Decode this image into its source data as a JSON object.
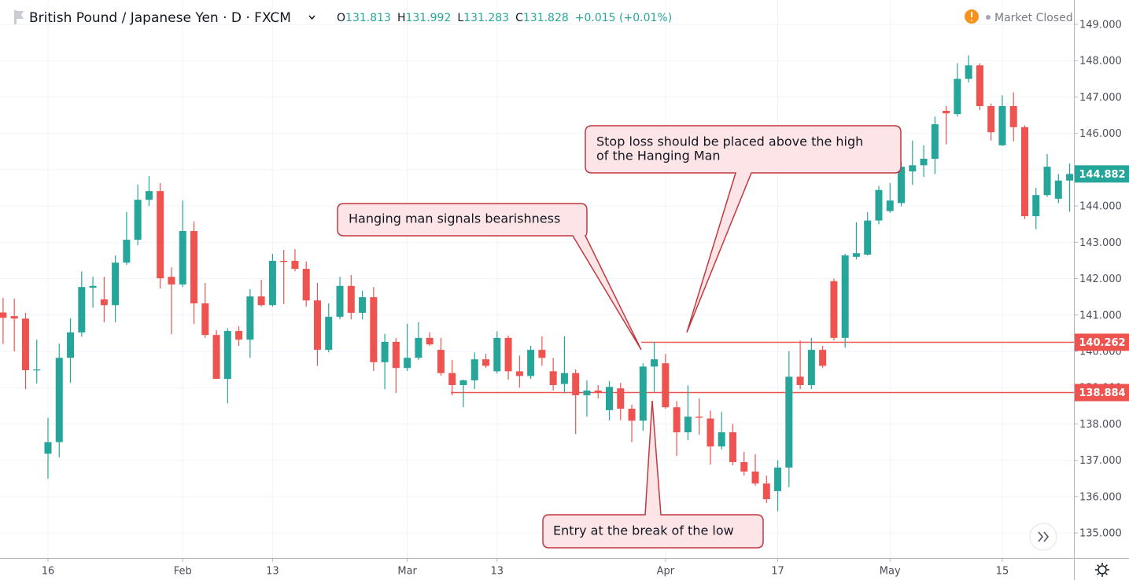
{
  "chart_data": {
    "type": "candlestick",
    "title": "British Pound / Japanese Yen · D · FXCM",
    "ohlc": [
      {
        "label": "O",
        "value": "131.813"
      },
      {
        "label": "H",
        "value": "131.992"
      },
      {
        "label": "L",
        "value": "131.283"
      },
      {
        "label": "C",
        "value": "131.828"
      }
    ],
    "change": "+0.015 (+0.01%)",
    "status": "Market Closed",
    "up_color": "#26a69a",
    "down_color": "#ef5350",
    "grid": true,
    "categories": [
      null,
      null,
      null,
      null,
      "16",
      null,
      null,
      null,
      null,
      null,
      null,
      null,
      null,
      null,
      null,
      null,
      "Feb",
      null,
      null,
      null,
      null,
      null,
      null,
      null,
      "13",
      null,
      null,
      null,
      null,
      null,
      null,
      null,
      null,
      null,
      null,
      null,
      "Mar",
      null,
      null,
      null,
      null,
      null,
      null,
      null,
      "13",
      null,
      null,
      null,
      null,
      null,
      null,
      null,
      null,
      null,
      null,
      null,
      null,
      null,
      null,
      "Apr",
      null,
      null,
      null,
      null,
      null,
      null,
      null,
      null,
      null,
      "17",
      null,
      null,
      null,
      null,
      null,
      null,
      null,
      null,
      null,
      "May",
      null,
      null,
      null,
      null,
      null,
      null,
      null,
      null,
      null,
      "15",
      null,
      null,
      null,
      null,
      null,
      null
    ],
    "open": [
      141.07,
      140.97,
      140.9,
      139.48,
      137.18,
      137.5,
      139.82,
      140.52,
      141.75,
      141.43,
      141.27,
      142.44,
      143.07,
      144.17,
      144.41,
      142.05,
      141.84,
      143.31,
      141.32,
      140.45,
      139.24,
      140.56,
      140.32,
      141.51,
      141.27,
      142.49,
      142.49,
      142.27,
      141.4,
      140.04,
      140.95,
      141.8,
      141.06,
      141.49,
      139.7,
      140.26,
      139.54,
      139.82,
      140.37,
      140.04,
      139.4,
      139.07,
      139.2,
      139.78,
      139.45,
      140.37,
      139.45,
      139.32,
      140.04,
      139.45,
      139.1,
      139.4,
      138.79,
      138.92,
      138.38,
      138.98,
      138.42,
      138.09,
      139.58,
      139.67,
      138.46,
      137.77,
      138.2,
      138.15,
      137.38,
      137.77,
      136.95,
      136.69,
      136.36,
      136.15,
      136.8,
      139.3,
      139.07,
      140.04,
      141.93,
      140.37,
      142.6,
      142.66,
      143.6,
      143.86,
      144.08,
      144.95,
      145.12,
      145.3,
      146.62,
      146.53,
      147.5,
      147.87,
      146.75,
      145.67,
      146.75,
      146.17,
      143.72,
      144.3,
      144.2,
      144.7
    ],
    "high": [
      141.47,
      141.45,
      141.06,
      140.32,
      138.17,
      140.21,
      140.91,
      142.2,
      142.05,
      142.05,
      142.64,
      143.83,
      144.59,
      144.82,
      144.63,
      142.31,
      144.15,
      143.57,
      141.88,
      140.58,
      140.63,
      140.69,
      141.71,
      141.97,
      142.68,
      142.79,
      142.81,
      142.47,
      141.88,
      141.32,
      142.05,
      142.1,
      141.67,
      141.77,
      140.48,
      140.37,
      140.76,
      140.8,
      140.52,
      140.37,
      139.76,
      139.22,
      139.97,
      139.93,
      140.55,
      140.43,
      139.88,
      140.15,
      140.41,
      139.82,
      140.41,
      139.5,
      139.2,
      139.07,
      139.18,
      139.13,
      138.53,
      139.67,
      140.262,
      139.93,
      138.63,
      139.06,
      138.7,
      138.37,
      138.33,
      138.0,
      137.23,
      137.17,
      136.58,
      137.0,
      140.0,
      140.3,
      140.37,
      140.15,
      142.0,
      142.68,
      143.55,
      143.83,
      144.55,
      144.63,
      145.23,
      145.8,
      145.67,
      146.46,
      146.75,
      147.93,
      148.15,
      147.93,
      146.82,
      147.05,
      147.13,
      146.22,
      144.5,
      145.43,
      144.88,
      145.17
    ],
    "low": [
      140.2,
      140.0,
      138.96,
      139.11,
      136.49,
      137.08,
      139.13,
      140.4,
      141.2,
      140.8,
      140.8,
      142.38,
      142.92,
      144.0,
      141.73,
      140.47,
      141.77,
      140.75,
      140.37,
      139.24,
      138.57,
      140.15,
      139.82,
      141.23,
      141.23,
      141.3,
      142.2,
      141.23,
      139.6,
      139.97,
      140.88,
      140.88,
      140.88,
      139.46,
      138.96,
      138.85,
      139.46,
      139.76,
      140.15,
      139.33,
      138.79,
      138.46,
      138.96,
      139.54,
      139.39,
      139.22,
      139.0,
      139.24,
      139.6,
      138.92,
      138.85,
      137.72,
      138.2,
      138.7,
      138.1,
      138.1,
      137.5,
      137.81,
      138.884,
      138.42,
      137.12,
      137.55,
      137.7,
      136.88,
      137.3,
      136.86,
      136.58,
      136.3,
      135.82,
      135.6,
      136.26,
      138.96,
      138.96,
      139.54,
      140.3,
      140.1,
      142.53,
      142.64,
      143.5,
      143.81,
      143.99,
      144.58,
      144.8,
      144.88,
      145.7,
      146.46,
      147.4,
      146.64,
      145.8,
      145.65,
      145.78,
      143.64,
      143.36,
      144.25,
      144.08,
      143.84
    ],
    "close": [
      140.92,
      140.9,
      139.48,
      139.5,
      137.5,
      139.82,
      140.52,
      141.77,
      141.8,
      141.27,
      142.44,
      143.07,
      144.17,
      144.41,
      142.01,
      141.84,
      143.31,
      141.32,
      140.45,
      139.24,
      140.56,
      140.32,
      141.51,
      141.27,
      142.49,
      142.46,
      142.27,
      141.4,
      140.04,
      140.95,
      141.8,
      141.06,
      141.49,
      139.7,
      140.26,
      139.54,
      139.82,
      140.37,
      140.19,
      139.4,
      139.07,
      139.2,
      139.78,
      139.6,
      140.37,
      139.45,
      139.32,
      140.04,
      139.82,
      139.07,
      139.4,
      138.79,
      138.92,
      138.86,
      139.02,
      138.42,
      138.09,
      139.58,
      139.78,
      138.46,
      137.77,
      138.2,
      138.17,
      137.38,
      137.77,
      136.95,
      136.69,
      136.36,
      135.93,
      136.8,
      139.3,
      139.07,
      140.04,
      139.6,
      140.37,
      142.64,
      142.7,
      143.6,
      144.44,
      144.15,
      145.08,
      145.12,
      145.3,
      146.25,
      146.55,
      147.5,
      147.87,
      146.75,
      146.03,
      146.75,
      146.17,
      143.72,
      144.3,
      145.08,
      144.7,
      144.882
    ],
    "ylim": [
      134.31,
      149.67
    ],
    "yticks": [
      {
        "value": 135,
        "label": "135.000"
      },
      {
        "value": 136,
        "label": "136.000"
      },
      {
        "value": 137,
        "label": "137.000"
      },
      {
        "value": 138,
        "label": "138.000"
      },
      {
        "value": 139,
        "label": "139.000"
      },
      {
        "value": 140,
        "label": "140.000"
      },
      {
        "value": 141,
        "label": "141.000"
      },
      {
        "value": 142,
        "label": "142.000"
      },
      {
        "value": 143,
        "label": "143.000"
      },
      {
        "value": 144,
        "label": "144.000"
      },
      {
        "value": 145,
        "label": "145.000"
      },
      {
        "value": 146,
        "label": "146.000"
      },
      {
        "value": 147,
        "label": "147.000"
      },
      {
        "value": 148,
        "label": "148.000"
      },
      {
        "value": 149,
        "label": "149.000"
      }
    ],
    "hlines": [
      {
        "value": 140.262,
        "color": "#ef5350"
      },
      {
        "value": 138.884,
        "color": "#ef5350"
      }
    ],
    "annotations": [
      {
        "lines": [
          "Stop loss should be placed above the high",
          "of the Hanging Man"
        ]
      },
      {
        "lines": [
          "Hanging man signals bearishness"
        ]
      },
      {
        "lines": [
          "Entry at the break of the low"
        ]
      }
    ]
  }
}
